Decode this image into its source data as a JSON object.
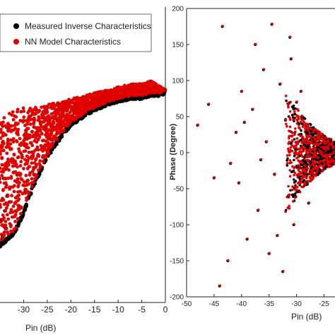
{
  "chart_data": [
    {
      "type": "scatter",
      "title": "",
      "xlabel": "Pin (dB)",
      "ylabel": "",
      "xlim": [
        -35,
        0
      ],
      "xticks": [
        -30,
        -25,
        -20,
        -15,
        -10,
        -5,
        0
      ],
      "grid": false,
      "legend_placement": "top-left",
      "series": [
        {
          "name": "Measured Inverse Characteristics",
          "color": "#000000",
          "marker": "circle"
        },
        {
          "name": "NN Model Characteristics",
          "color": "#e00000",
          "marker": "circle"
        }
      ],
      "summary": {
        "x": [
          -35,
          -32,
          -30,
          -28,
          -25,
          -22,
          -20,
          -17,
          -15,
          -12,
          -10,
          -7,
          -5,
          -3,
          -2,
          -1,
          0
        ],
        "upper_edge": [
          0.62,
          0.65,
          0.66,
          0.66,
          0.67,
          0.68,
          0.69,
          0.7,
          0.71,
          0.72,
          0.73,
          0.74,
          0.74,
          0.75,
          0.74,
          0.73,
          0.72
        ],
        "lower_edge": [
          0.2,
          0.24,
          0.31,
          0.4,
          0.5,
          0.57,
          0.61,
          0.64,
          0.66,
          0.68,
          0.69,
          0.7,
          0.7,
          0.71,
          0.71,
          0.71,
          0.72
        ]
      }
    },
    {
      "type": "scatter",
      "title": "",
      "xlabel": "Pin (dB)",
      "ylabel": "Phase (Degree)",
      "xlim": [
        -50,
        -23
      ],
      "ylim": [
        -200,
        200
      ],
      "xticks": [
        -50,
        -45,
        -40,
        -35,
        -30,
        -25
      ],
      "yticks": [
        -200,
        -150,
        -100,
        -50,
        0,
        50,
        100,
        150,
        200
      ],
      "grid": false,
      "series": [
        {
          "name": "Measured Inverse Characteristics",
          "color": "#000000"
        },
        {
          "name": "NN Model Characteristics",
          "color": "#e00000"
        }
      ],
      "scattered_points": [
        [
          -48,
          38
        ],
        [
          -46,
          67
        ],
        [
          -44,
          -185
        ],
        [
          -43.5,
          175
        ],
        [
          -42,
          -15
        ],
        [
          -41,
          28
        ],
        [
          -40.5,
          -42
        ],
        [
          -40,
          85
        ],
        [
          -39,
          -120
        ],
        [
          -38,
          60
        ],
        [
          -37.5,
          150
        ],
        [
          -37,
          -80
        ],
        [
          -36,
          115
        ],
        [
          -35.5,
          15
        ],
        [
          -35,
          -140
        ],
        [
          -34.5,
          178
        ],
        [
          -34,
          -30
        ],
        [
          -33,
          95
        ],
        [
          -32.5,
          -165
        ],
        [
          -32,
          45
        ],
        [
          -31.5,
          -60
        ],
        [
          -31,
          130
        ],
        [
          -30.5,
          -100
        ],
        [
          -30,
          70
        ],
        [
          -29.5,
          -20
        ],
        [
          -29,
          50
        ],
        [
          -28.5,
          -45
        ],
        [
          -28,
          30
        ],
        [
          -27.5,
          -25
        ],
        [
          -27,
          20
        ],
        [
          -26,
          -15
        ],
        [
          -25,
          12
        ],
        [
          -24,
          -8
        ],
        [
          -23,
          5
        ],
        [
          -45,
          -35
        ],
        [
          -42.5,
          -150
        ],
        [
          -39.5,
          42
        ],
        [
          -36.5,
          -10
        ],
        [
          -33.5,
          -115
        ],
        [
          -31.2,
          160
        ],
        [
          -29.2,
          85
        ],
        [
          -27.8,
          -70
        ]
      ],
      "cone": {
        "x": [
          -32,
          -31,
          -30,
          -29,
          -28,
          -27,
          -26,
          -25,
          -24,
          -23
        ],
        "upper": [
          80,
          70,
          62,
          52,
          44,
          36,
          30,
          24,
          20,
          16
        ],
        "lower": [
          -85,
          -75,
          -62,
          -52,
          -44,
          -36,
          -30,
          -24,
          -20,
          -16
        ]
      }
    }
  ]
}
